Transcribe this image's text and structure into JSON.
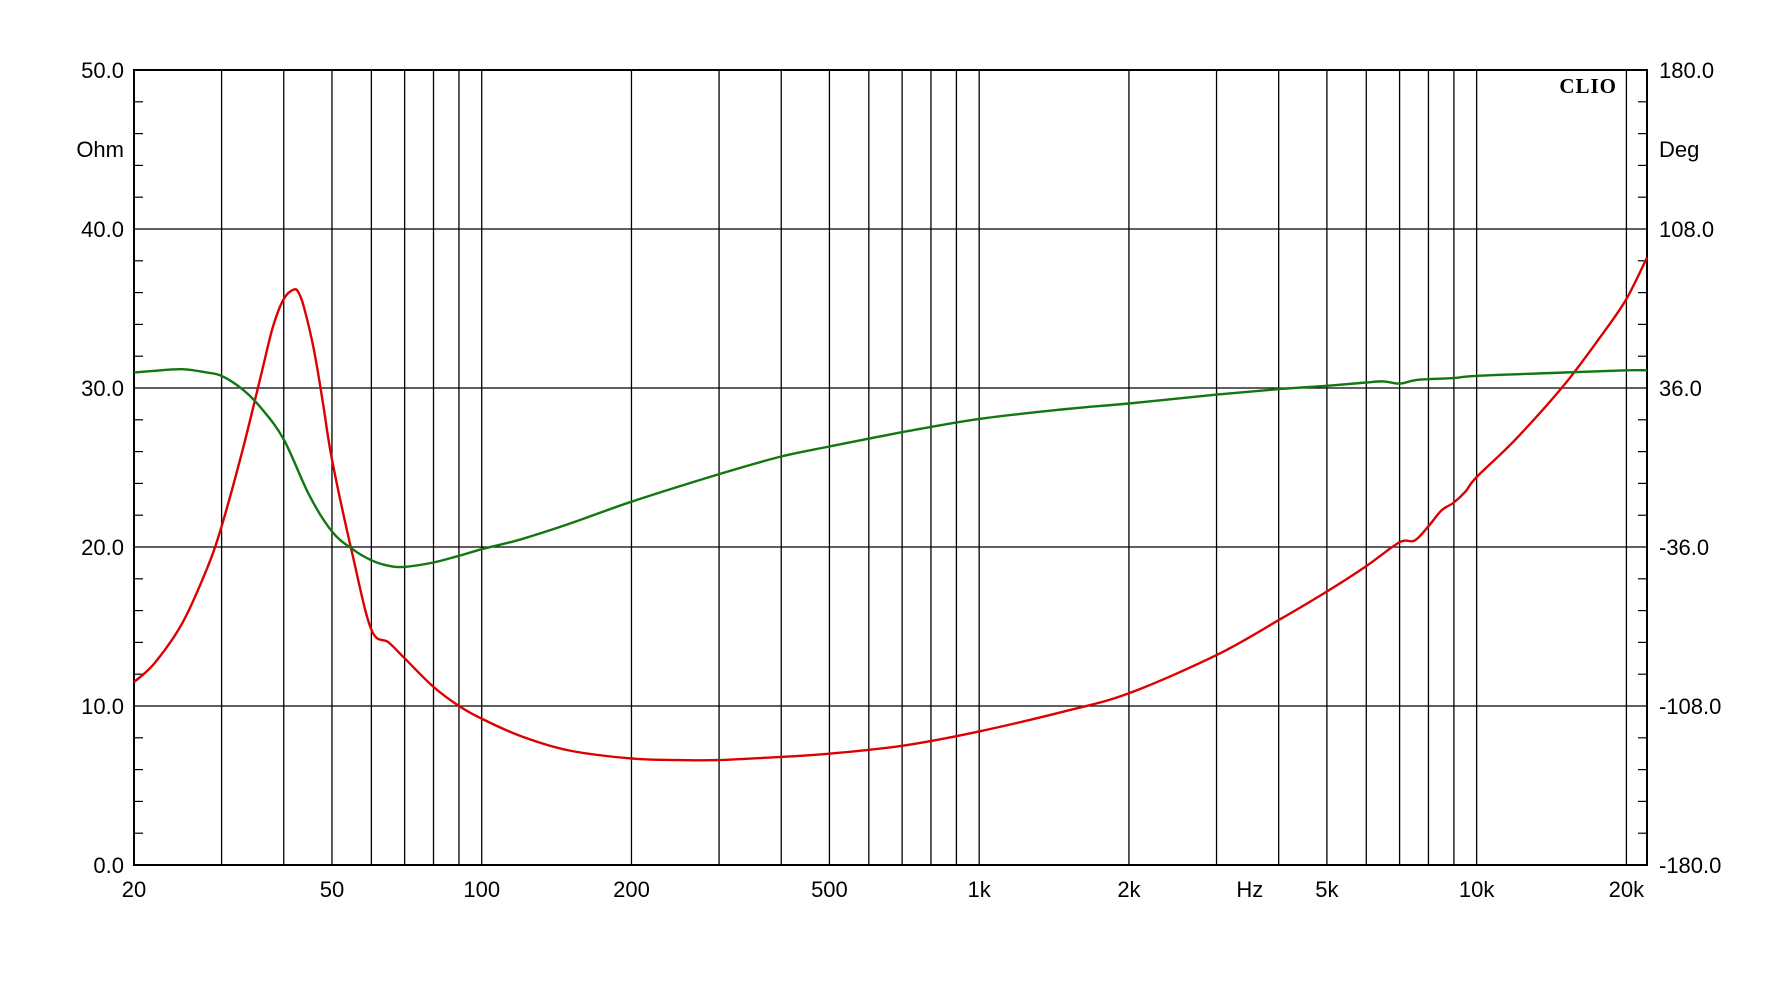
{
  "chart_data": {
    "type": "line",
    "brand": "CLIO",
    "x_scale": "log",
    "xlim": [
      20,
      22000
    ],
    "grid": true,
    "x_ticks": [
      {
        "value": 20,
        "label": "20"
      },
      {
        "value": 50,
        "label": "50"
      },
      {
        "value": 100,
        "label": "100"
      },
      {
        "value": 200,
        "label": "200"
      },
      {
        "value": 500,
        "label": "500"
      },
      {
        "value": 1000,
        "label": "1k"
      },
      {
        "value": 2000,
        "label": "2k"
      },
      {
        "value": 5000,
        "label": "5k"
      },
      {
        "value": 10000,
        "label": "10k"
      },
      {
        "value": 20000,
        "label": "20k"
      }
    ],
    "x_unit": "Hz",
    "x_unit_position_value": 3500,
    "x_grid_values": [
      30,
      40,
      50,
      60,
      70,
      80,
      90,
      100,
      200,
      300,
      400,
      500,
      600,
      700,
      800,
      900,
      1000,
      2000,
      3000,
      4000,
      5000,
      6000,
      7000,
      8000,
      9000,
      10000,
      20000
    ],
    "y_left": {
      "unit": "Ohm",
      "ylim": [
        0,
        50
      ],
      "ticks": [
        {
          "value": 50,
          "label": "50.0"
        },
        {
          "value": 40,
          "label": "40.0"
        },
        {
          "value": 30,
          "label": "30.0"
        },
        {
          "value": 20,
          "label": "20.0"
        },
        {
          "value": 10,
          "label": "10.0"
        },
        {
          "value": 0,
          "label": "0.0"
        }
      ]
    },
    "y_right": {
      "unit": "Deg",
      "ylim": [
        -180,
        180
      ],
      "ticks": [
        {
          "value": 180,
          "label": "180.0"
        },
        {
          "value": 108,
          "label": "108.0"
        },
        {
          "value": 36,
          "label": "36.0"
        },
        {
          "value": -36,
          "label": "-36.0"
        },
        {
          "value": -108,
          "label": "-108.0"
        },
        {
          "value": -180,
          "label": "-180.0"
        }
      ]
    },
    "series": [
      {
        "color": "#dd0000",
        "axis": "left",
        "x": [
          20,
          22,
          25,
          28,
          30,
          33,
          36,
          38,
          40,
          42,
          43,
          44,
          46,
          48,
          50,
          55,
          60,
          65,
          70,
          80,
          90,
          100,
          120,
          150,
          200,
          250,
          300,
          400,
          500,
          700,
          1000,
          1500,
          2000,
          3000,
          4000,
          5000,
          6000,
          7000,
          7500,
          8000,
          8500,
          9000,
          9500,
          10000,
          12000,
          15000,
          18000,
          20000,
          22000
        ],
        "values": [
          11.5,
          12.7,
          15.2,
          18.6,
          21.3,
          26.0,
          30.8,
          33.8,
          35.6,
          36.2,
          35.9,
          35.0,
          32.4,
          29.0,
          25.5,
          19.5,
          14.8,
          14.0,
          13.0,
          11.2,
          10.0,
          9.2,
          8.1,
          7.2,
          6.7,
          6.6,
          6.6,
          6.8,
          7.0,
          7.5,
          8.4,
          9.7,
          10.8,
          13.2,
          15.4,
          17.2,
          18.8,
          20.3,
          20.4,
          21.3,
          22.3,
          22.8,
          23.5,
          24.4,
          26.8,
          30.2,
          33.5,
          35.6,
          38.2
        ]
      },
      {
        "color": "#117711",
        "axis": "right",
        "x": [
          20,
          22,
          25,
          28,
          30,
          33,
          36,
          40,
          45,
          50,
          55,
          60,
          65,
          70,
          80,
          90,
          100,
          120,
          150,
          200,
          300,
          400,
          500,
          700,
          1000,
          1500,
          2000,
          3000,
          4000,
          5000,
          6000,
          6500,
          7000,
          7500,
          8000,
          9000,
          10000,
          15000,
          20000,
          22000
        ],
        "values": [
          43.0,
          43.8,
          44.5,
          43.0,
          41.5,
          35.5,
          27.0,
          12.7,
          -12.5,
          -29.0,
          -37.0,
          -42.0,
          -44.5,
          -45.0,
          -43.0,
          -40.0,
          -37.0,
          -32.5,
          -25.5,
          -15.5,
          -3.0,
          5.0,
          9.5,
          16.0,
          22.0,
          26.5,
          29.0,
          33.0,
          35.5,
          37.0,
          38.5,
          39.0,
          38.0,
          39.5,
          40.0,
          40.5,
          41.5,
          43.0,
          44.0,
          44.0
        ]
      }
    ]
  }
}
